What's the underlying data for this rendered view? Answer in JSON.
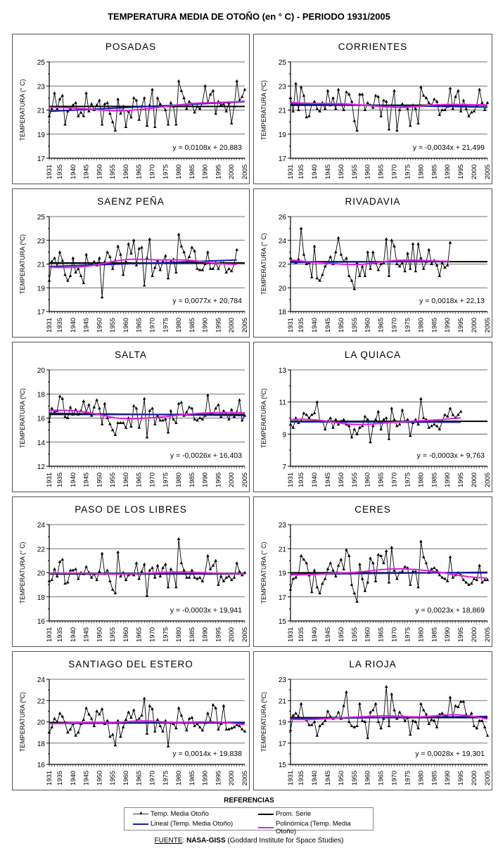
{
  "title": "TEMPERATURA MEDIA DE OTOÑO (en ° C) - PERIODO 1931/2005",
  "legend": {
    "title": "REFERENCIAS",
    "items": [
      "Temp. Media Otoño",
      "Prom. Serie",
      "Lineal (Temp. Media Otoño)",
      "Polinómica (Temp. Media Otoño)"
    ]
  },
  "source": {
    "label": "FUENTE",
    "sep": ": ",
    "org": "NASA-GISS",
    "detail": " (Goddard Institute for Space Studies)"
  },
  "colors": {
    "data": "#000000",
    "average": "#000000",
    "linear": "#1a1aa8",
    "poly": "#e020e0"
  },
  "chart_data": [
    {
      "type": "line",
      "title": "POSADAS",
      "ylabel": "TEMPERATURA (° C)",
      "ylim": [
        17,
        25
      ],
      "yticks": [
        17,
        19,
        21,
        23,
        25
      ],
      "start_year": 1931,
      "average": 21.3,
      "trend": {
        "slope": 0.0108,
        "intercept": 20.883
      },
      "equation": "y = 0,0108x + 20,883",
      "values": [
        20.5,
        21.1,
        22.4,
        21.1,
        21.9,
        22.2,
        19.8,
        20.9,
        21.1,
        21.4,
        21.6,
        20.5,
        20.8,
        20.5,
        22.4,
        20.9,
        21.5,
        21.0,
        21.4,
        21.8,
        19.8,
        21.5,
        21.6,
        20.7,
        20.0,
        19.3,
        21.9,
        20.7,
        21.3,
        19.6,
        20.9,
        20.4,
        22.0,
        21.8,
        20.2,
        21.3,
        22.0,
        19.7,
        21.4,
        22.7,
        19.6,
        22.0,
        21.5,
        21.3,
        21.0,
        19.8,
        21.6,
        21.3,
        19.8,
        23.4,
        22.6,
        22.0,
        21.1,
        21.7,
        21.5,
        20.8,
        21.3,
        21.1,
        21.6,
        23.0,
        21.6,
        22.3,
        22.6,
        20.7,
        21.7,
        21.4,
        21.5,
        20.9,
        21.6,
        19.9,
        21.3,
        23.4,
        21.8,
        22.1,
        22.7
      ]
    },
    {
      "type": "line",
      "title": "CORRIENTES",
      "ylabel": "TEMPERATURA (ºC)",
      "ylim": [
        17,
        25
      ],
      "yticks": [
        17,
        19,
        21,
        23,
        25
      ],
      "start_year": 1931,
      "average": 21.4,
      "trend": {
        "slope": -0.0034,
        "intercept": 21.499
      },
      "equation": "y = -0,0034x + 21,499",
      "values": [
        22.0,
        20.9,
        23.2,
        21.0,
        22.9,
        22.2,
        20.4,
        20.5,
        21.5,
        21.7,
        21.1,
        20.9,
        21.6,
        21.1,
        22.6,
        21.4,
        22.0,
        21.1,
        22.7,
        21.5,
        21.0,
        22.5,
        22.3,
        21.7,
        20.1,
        19.3,
        22.3,
        22.3,
        21.0,
        21.6,
        21.4,
        21.2,
        22.2,
        22.1,
        20.5,
        21.8,
        21.7,
        19.4,
        21.4,
        22.6,
        19.3,
        21.0,
        21.5,
        21.3,
        21.1,
        19.7,
        21.4,
        21.1,
        19.9,
        22.9,
        22.2,
        22.0,
        21.6,
        21.4,
        21.9,
        21.7,
        20.6,
        21.0,
        21.0,
        21.3,
        22.8,
        21.1,
        22.1,
        22.6,
        20.9,
        21.8,
        21.1,
        20.5,
        20.8,
        20.9,
        21.4,
        22.7,
        21.6,
        21.0,
        21.6
      ]
    },
    {
      "type": "line",
      "title": "SAENZ PEÑA",
      "ylabel": "TEMPERATURA (ºC)",
      "ylim": [
        17,
        25
      ],
      "yticks": [
        17,
        19,
        21,
        23,
        25
      ],
      "start_year": 1931,
      "average": 21.1,
      "trend": {
        "slope": 0.0077,
        "intercept": 20.784
      },
      "equation": "y = 0,0077x + 20,784",
      "values": [
        19.6,
        21.2,
        21.5,
        20.8,
        22.0,
        21.3,
        20.1,
        19.6,
        20.0,
        21.5,
        20.3,
        20.6,
        20.0,
        19.4,
        21.8,
        20.9,
        21.0,
        21.2,
        20.9,
        21.5,
        18.2,
        21.2,
        22.0,
        21.6,
        20.6,
        21.3,
        22.5,
        21.8,
        20.1,
        21.2,
        22.7,
        21.9,
        23.0,
        20.9,
        22.3,
        22.4,
        19.2,
        21.5,
        23.1,
        20.0,
        20.7,
        21.3,
        20.5,
        21.2,
        21.7,
        19.8,
        21.2,
        21.4,
        20.3,
        23.5,
        22.5,
        22.0,
        21.2,
        21.6,
        22.4,
        22.1,
        20.6,
        20.5,
        20.5,
        21.0,
        22.0,
        20.6,
        20.6,
        21.1,
        20.6,
        21.1,
        21.1,
        20.3,
        20.6,
        20.4,
        21.0,
        22.2
      ]
    },
    {
      "type": "line",
      "title": "RIVADAVIA",
      "ylabel": "TEMPERATURA (° C)",
      "ylim": [
        18,
        26
      ],
      "yticks": [
        18,
        20,
        22,
        24,
        26
      ],
      "start_year": 1931,
      "average": 22.2,
      "trend": {
        "slope": 0.0018,
        "intercept": 22.13
      },
      "equation": "y = 0,0018x + 22,13",
      "values": [
        22.5,
        22.2,
        22.1,
        22.4,
        25.0,
        22.8,
        22.0,
        22.1,
        20.9,
        23.5,
        20.8,
        20.6,
        21.1,
        21.8,
        22.1,
        22.6,
        22.0,
        23.0,
        24.2,
        22.8,
        22.2,
        22.5,
        21.0,
        20.6,
        19.9,
        22.1,
        21.0,
        21.8,
        21.0,
        23.0,
        21.6,
        23.0,
        22.1,
        21.5,
        22.0,
        22.1,
        24.1,
        21.0,
        24.0,
        23.5,
        22.0,
        21.8,
        22.1,
        21.4,
        22.9,
        21.6,
        23.7,
        21.4,
        23.7,
        22.5,
        21.6,
        22.2,
        23.2,
        22.0,
        22.3,
        21.9,
        21.0,
        22.1,
        21.7,
        21.9,
        23.8
      ]
    },
    {
      "type": "line",
      "title": "SALTA",
      "ylabel": "TEMPERATURA (ºC)",
      "ylim": [
        12,
        20
      ],
      "yticks": [
        12,
        14,
        16,
        18,
        20
      ],
      "start_year": 1931,
      "average": 16.3,
      "trend": {
        "slope": -0.0026,
        "intercept": 16.403
      },
      "equation": "y = -0,0026x + 16,403",
      "values": [
        15.7,
        16.8,
        16.5,
        16.6,
        17.8,
        17.6,
        16.1,
        16.0,
        16.9,
        16.3,
        16.7,
        16.3,
        16.6,
        17.4,
        16.5,
        17.1,
        16.2,
        16.9,
        17.5,
        16.8,
        15.5,
        17.2,
        16.0,
        15.5,
        15.0,
        14.6,
        15.6,
        15.6,
        15.6,
        15.2,
        16.0,
        15.3,
        17.0,
        16.8,
        15.2,
        16.0,
        17.6,
        14.4,
        16.6,
        16.8,
        15.5,
        16.2,
        15.8,
        15.8,
        15.9,
        14.8,
        16.6,
        15.9,
        15.6,
        17.2,
        17.3,
        16.2,
        16.5,
        16.9,
        16.8,
        15.9,
        15.8,
        16.0,
        15.9,
        16.2,
        17.9,
        16.4,
        16.3,
        16.8,
        17.1,
        16.1,
        16.6,
        16.3,
        15.9,
        16.7,
        16.1,
        16.5,
        17.5,
        15.8,
        16.2
      ]
    },
    {
      "type": "line",
      "title": "LA QUIACA",
      "ylabel": "TEMPERATURA (ºC)",
      "ylim": [
        7,
        13
      ],
      "yticks": [
        7,
        9,
        11,
        13
      ],
      "start_year": 1931,
      "average": 9.8,
      "trend": {
        "slope": -0.0003,
        "intercept": 9.763
      },
      "equation": "y = -0,0003x + 9,763",
      "values": [
        9.6,
        9.4,
        10.0,
        9.7,
        9.8,
        10.3,
        10.2,
        10.0,
        10.2,
        10.3,
        11.0,
        9.8,
        9.8,
        9.3,
        9.8,
        10.0,
        9.4,
        9.9,
        9.6,
        9.8,
        9.9,
        9.6,
        9.5,
        8.8,
        9.3,
        9.0,
        9.4,
        9.5,
        10.1,
        9.9,
        8.5,
        9.5,
        9.9,
        10.4,
        9.3,
        9.9,
        10.0,
        8.7,
        10.6,
        9.9,
        9.5,
        9.6,
        10.5,
        9.8,
        9.9,
        8.9,
        9.7,
        9.9,
        9.6,
        11.2,
        10.0,
        9.9,
        9.4,
        9.5,
        9.6,
        9.5,
        9.3,
        9.8,
        10.2,
        10.1,
        10.6,
        10.2,
        10.0,
        10.2,
        10.4
      ]
    },
    {
      "type": "line",
      "title": "PASO DE LOS LIBRES",
      "ylabel": "TEMPERATURA (° C)",
      "ylim": [
        16,
        24
      ],
      "yticks": [
        16,
        18,
        20,
        22,
        24
      ],
      "start_year": 1931,
      "average": 19.9,
      "trend": {
        "slope": -0.0003,
        "intercept": 19.941
      },
      "equation": "y = -0,0003x + 19,941",
      "values": [
        19.3,
        19.4,
        20.3,
        19.7,
        20.9,
        21.1,
        19.1,
        19.2,
        20.2,
        20.2,
        20.3,
        19.5,
        20.0,
        19.9,
        20.5,
        20.0,
        19.6,
        19.9,
        19.4,
        20.1,
        21.6,
        19.9,
        20.2,
        19.3,
        18.6,
        18.3,
        21.7,
        19.7,
        20.0,
        19.4,
        19.8,
        19.9,
        19.8,
        20.8,
        19.5,
        20.1,
        20.7,
        18.1,
        20.2,
        20.4,
        19.6,
        20.6,
        19.7,
        20.4,
        20.7,
        18.8,
        20.3,
        20.0,
        18.8,
        22.8,
        20.8,
        20.2,
        19.6,
        19.6,
        20.2,
        19.6,
        19.5,
        19.6,
        19.3,
        20.0,
        21.4,
        20.3,
        20.6,
        21.0,
        19.0,
        19.7,
        19.3,
        19.6,
        19.7,
        19.4,
        19.6,
        20.8,
        20.1,
        19.8,
        20.0
      ]
    },
    {
      "type": "line",
      "title": "CERES",
      "ylabel": "TEMPERATURA (° C)",
      "ylim": [
        15,
        23
      ],
      "yticks": [
        15,
        17,
        19,
        21,
        23
      ],
      "start_year": 1931,
      "average": 19.0,
      "trend": {
        "slope": 0.0023,
        "intercept": 18.869
      },
      "equation": "y = 0,0023x + 18,869",
      "values": [
        17.6,
        18.5,
        18.6,
        18.9,
        20.4,
        20.1,
        19.8,
        18.8,
        17.4,
        19.2,
        17.8,
        17.3,
        18.1,
        18.5,
        19.3,
        19.8,
        19.2,
        18.7,
        19.6,
        20.1,
        19.3,
        20.9,
        20.4,
        18.0,
        17.3,
        16.6,
        19.7,
        18.5,
        17.5,
        18.2,
        20.2,
        19.8,
        18.3,
        20.5,
        20.4,
        19.8,
        20.8,
        18.2,
        21.1,
        19.2,
        18.5,
        19.0,
        19.1,
        19.5,
        19.4,
        18.0,
        19.1,
        19.1,
        17.8,
        21.6,
        20.3,
        19.8,
        19.0,
        19.3,
        19.4,
        19.2,
        18.8,
        18.6,
        18.5,
        18.3,
        20.3,
        18.6,
        18.8,
        19.0,
        18.8,
        18.4,
        18.2,
        18.0,
        18.1,
        18.5,
        18.4,
        19.6,
        18.2,
        18.4,
        18.4
      ]
    },
    {
      "type": "line",
      "title": "SANTIAGO DEL ESTERO",
      "ylabel": "TEMPERATURA (ºC)",
      "ylim": [
        16,
        24
      ],
      "yticks": [
        16,
        18,
        20,
        22,
        24
      ],
      "start_year": 1931,
      "average": 19.9,
      "trend": {
        "slope": 0.0014,
        "intercept": 19.838
      },
      "equation": "y = 0,0014x + 19,838",
      "values": [
        19.0,
        19.5,
        20.3,
        20.0,
        20.8,
        20.5,
        19.9,
        19.0,
        19.3,
        19.8,
        18.7,
        19.0,
        19.8,
        20.2,
        21.3,
        20.7,
        20.3,
        19.6,
        21.0,
        20.7,
        21.2,
        19.8,
        20.1,
        18.6,
        18.8,
        17.8,
        20.1,
        18.6,
        19.5,
        20.2,
        20.9,
        20.4,
        21.1,
        20.1,
        20.3,
        20.6,
        22.2,
        18.9,
        21.5,
        21.2,
        19.1,
        20.2,
        19.6,
        19.1,
        20.1,
        17.7,
        19.9,
        19.8,
        19.4,
        21.3,
        20.6,
        19.9,
        19.2,
        20.3,
        20.4,
        19.6,
        19.8,
        19.5,
        19.2,
        19.9,
        20.8,
        20.1,
        21.6,
        21.3,
        19.3,
        19.8,
        21.5,
        19.3,
        19.3,
        19.4,
        19.5,
        19.7,
        19.6,
        19.3,
        19.1
      ]
    },
    {
      "type": "line",
      "title": "LA RIOJA",
      "ylabel": "TEMPERATURA (ºC)",
      "ylim": [
        15,
        23
      ],
      "yticks": [
        15,
        17,
        19,
        21,
        23
      ],
      "start_year": 1931,
      "average": 19.4,
      "trend": {
        "slope": 0.0028,
        "intercept": 19.301
      },
      "equation": "y = 0,0028x + 19,301",
      "values": [
        18.2,
        19.6,
        19.8,
        19.5,
        20.7,
        19.3,
        19.2,
        18.7,
        18.7,
        19.0,
        17.7,
        18.6,
        18.8,
        19.1,
        20.0,
        19.5,
        19.3,
        19.4,
        19.9,
        19.3,
        20.5,
        21.8,
        19.0,
        18.6,
        18.5,
        18.6,
        20.7,
        19.1,
        19.0,
        17.5,
        19.9,
        20.1,
        20.7,
        19.0,
        18.4,
        19.3,
        22.3,
        18.6,
        21.6,
        20.1,
        19.3,
        19.9,
        19.5,
        19.1,
        19.4,
        17.8,
        19.1,
        19.0,
        18.4,
        20.7,
        20.1,
        19.7,
        18.8,
        19.2,
        19.1,
        18.5,
        19.7,
        19.8,
        19.6,
        19.5,
        21.3,
        19.5,
        20.5,
        20.4,
        20.9,
        20.9,
        19.7,
        19.5,
        19.8,
        18.6,
        18.4,
        19.1,
        19.1,
        18.5,
        17.7
      ]
    }
  ],
  "x_ticks": [
    "1931",
    "1935",
    "1940",
    "1945",
    "1950",
    "1955",
    "1960",
    "1965",
    "1970",
    "1975",
    "1980",
    "1985",
    "1990",
    "1995",
    "2000",
    "2005"
  ]
}
